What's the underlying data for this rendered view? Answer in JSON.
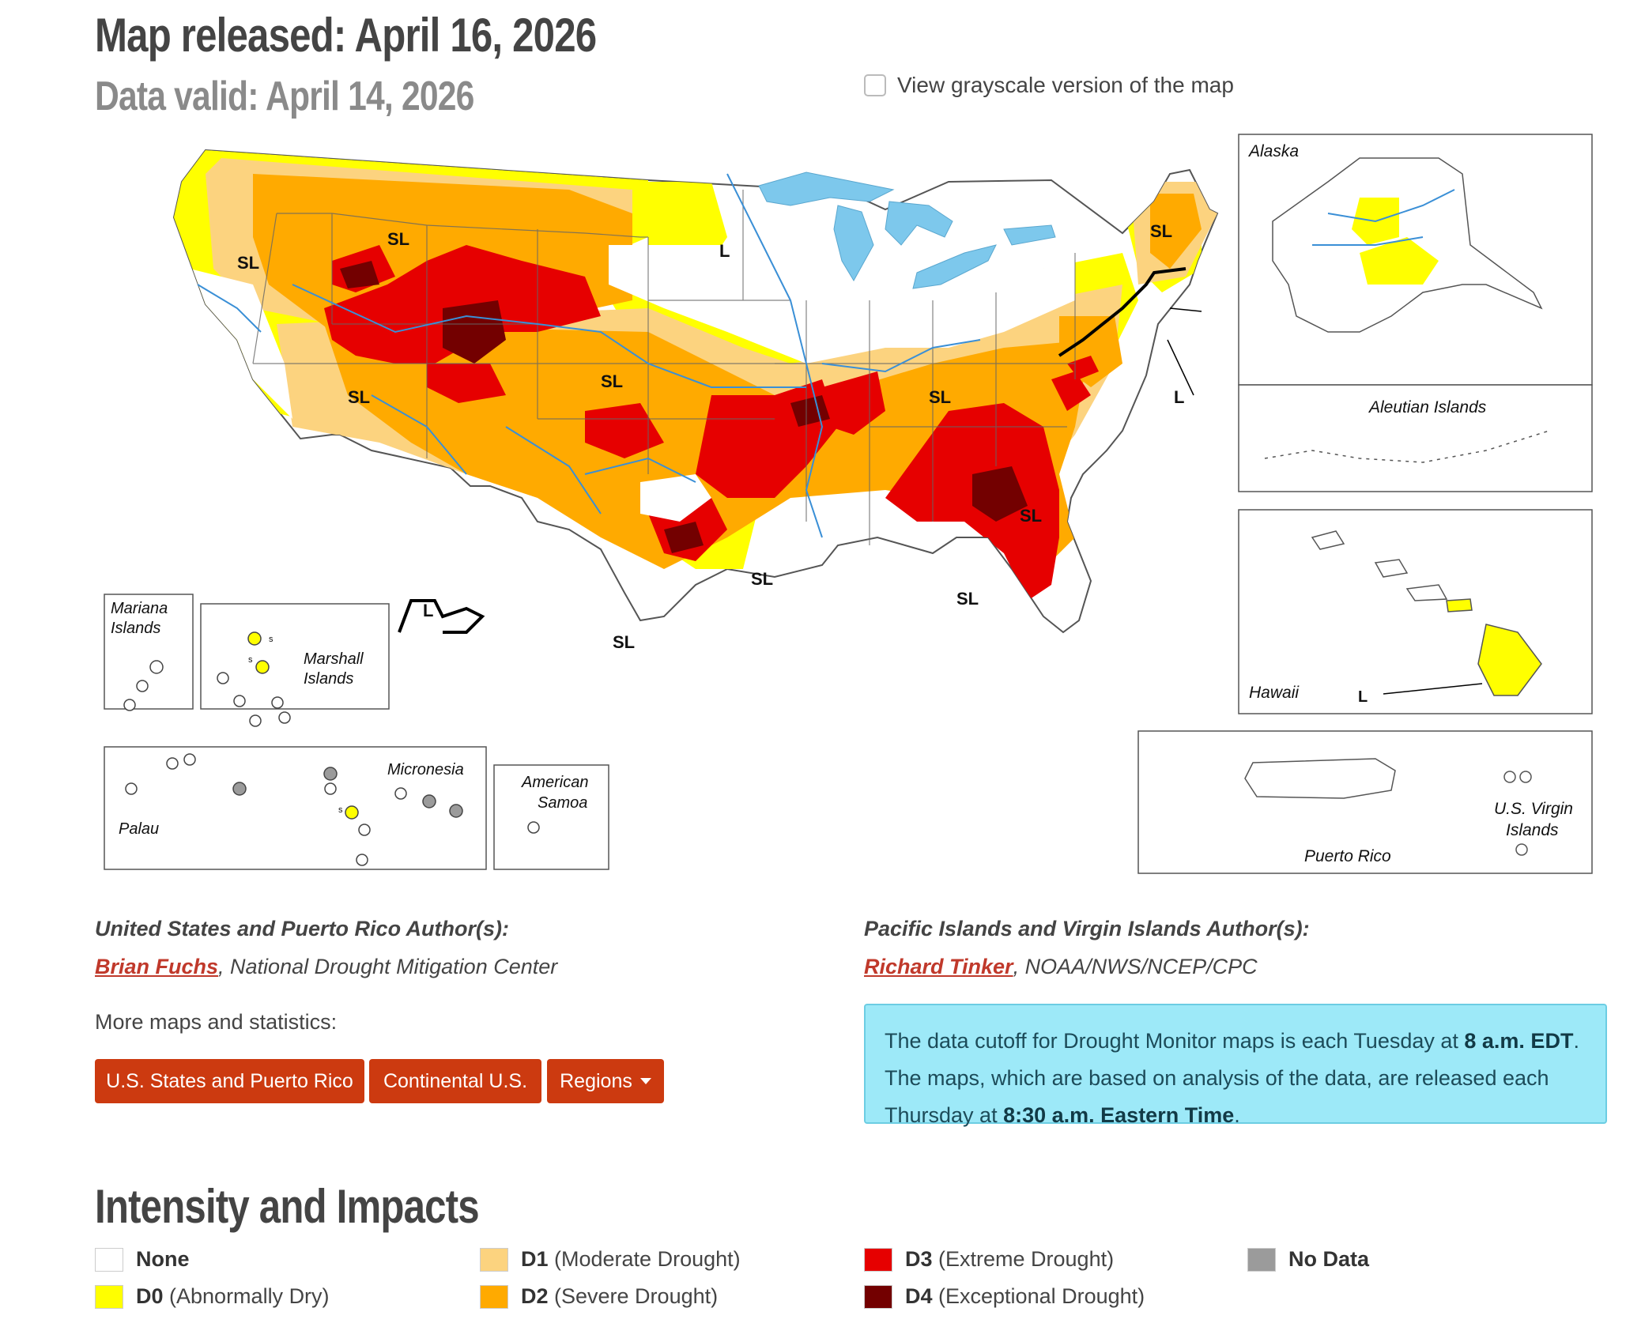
{
  "header": {
    "released": "Map released: April 16, 2026",
    "valid": "Data valid: April 14, 2026",
    "grayscale_label": "View grayscale version of the map"
  },
  "map": {
    "labels": {
      "sl": "SL",
      "l": "L",
      "s": "s",
      "alaska": "Alaska",
      "aleutian": "Aleutian Islands",
      "hawaii": "Hawaii",
      "puerto_rico": "Puerto Rico",
      "usvi_1": "U.S. Virgin",
      "usvi_2": "Islands",
      "mariana_1": "Mariana",
      "mariana_2": "Islands",
      "marshall_1": "Marshall",
      "marshall_2": "Islands",
      "micronesia": "Micronesia",
      "palau": "Palau",
      "samoa_1": "American",
      "samoa_2": "Samoa"
    },
    "colors": {
      "none": "#ffffff",
      "d0": "#ffff00",
      "d1": "#fcd37f",
      "d2": "#ffaa00",
      "d3": "#e60000",
      "d4": "#730000",
      "no_data": "#9b9b9b",
      "water": "#7dc8ec",
      "river": "#3a8fd6"
    }
  },
  "authors": {
    "us_heading": "United States and Puerto Rico Author(s):",
    "us_name": "Brian Fuchs",
    "us_org": ", National Drought Mitigation Center",
    "pi_heading": "Pacific Islands and Virgin Islands Author(s):",
    "pi_name": "Richard Tinker",
    "pi_org": ", NOAA/NWS/NCEP/CPC"
  },
  "more": {
    "label": "More maps and statistics:",
    "buttons": [
      "U.S. States and Puerto Rico",
      "Continental U.S.",
      "Regions"
    ]
  },
  "info": {
    "t1": "The data cutoff for Drought Monitor maps is each Tuesday at ",
    "b1": "8 a.m. EDT",
    "t2": ". The maps, which are based on analysis of the data, are released each Thursday at ",
    "b2": "8:30 a.m. Eastern Time",
    "t3": "."
  },
  "legend": {
    "title": "Intensity and Impacts",
    "items": [
      {
        "code": "None",
        "desc": "",
        "color": "#ffffff"
      },
      {
        "code": "D0",
        "desc": " (Abnormally Dry)",
        "color": "#ffff00"
      },
      {
        "code": "D1",
        "desc": " (Moderate Drought)",
        "color": "#fcd37f"
      },
      {
        "code": "D2",
        "desc": " (Severe Drought)",
        "color": "#ffaa00"
      },
      {
        "code": "D3",
        "desc": " (Extreme Drought)",
        "color": "#e60000"
      },
      {
        "code": "D4",
        "desc": " (Exceptional Drought)",
        "color": "#730000"
      },
      {
        "code": "No Data",
        "desc": "",
        "color": "#9b9b9b"
      }
    ]
  }
}
